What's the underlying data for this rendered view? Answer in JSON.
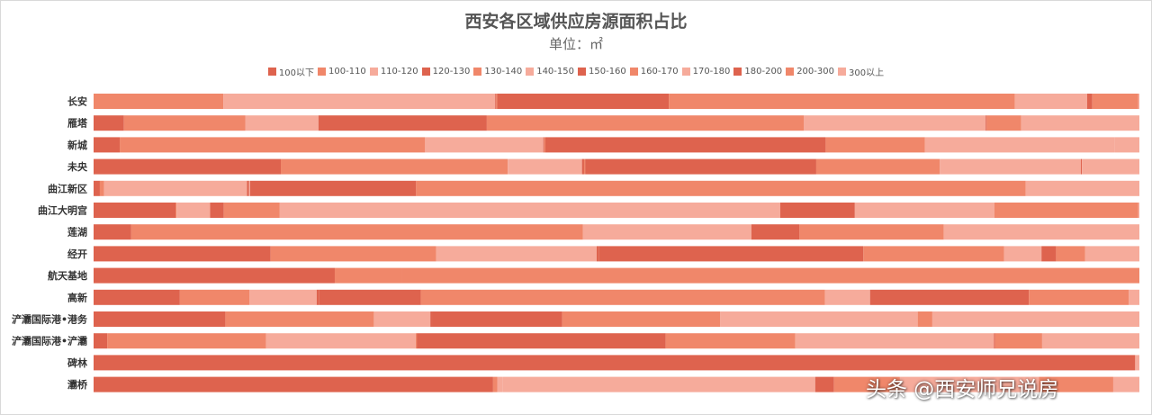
{
  "chart_data": {
    "type": "bar",
    "stacked": "100%",
    "orientation": "horizontal",
    "title": "西安各区域供应房源面积占比",
    "subtitle": "单位：㎡",
    "legend_position": "top",
    "categories": [
      "长安",
      "雁塔",
      "新城",
      "未央",
      "曲江新区",
      "曲江大明宫",
      "莲湖",
      "经开",
      "航天基地",
      "高新",
      "浐灞国际港•港务",
      "浐灞国际港•浐灞",
      "碑林",
      "灞桥"
    ],
    "series": [
      {
        "name": "100以下",
        "color": "#de634e",
        "values": [
          0,
          2.9,
          2.5,
          17.9,
          0.6,
          7.8,
          3.6,
          17.0,
          24.1,
          8.2,
          12.6,
          1.3,
          99.6,
          38.2
        ]
      },
      {
        "name": "100-110",
        "color": "#f0876a",
        "values": [
          12.4,
          11.6,
          29.2,
          21.7,
          0.4,
          0.1,
          0,
          15.9,
          6.7,
          6.6,
          14.2,
          15.2,
          0,
          0.4
        ]
      },
      {
        "name": "110-120",
        "color": "#f6ab9b",
        "values": [
          26.0,
          7.0,
          11.3,
          7.1,
          13.7,
          3.2,
          0,
          15.4,
          0,
          6.4,
          5.4,
          14.3,
          0,
          0.5
        ]
      },
      {
        "name": "120-130",
        "color": "#de634e",
        "values": [
          0.1,
          0,
          0.1,
          0.2,
          0.2,
          1.3,
          0,
          0.2,
          0,
          0.2,
          0.2,
          0,
          0,
          0
        ]
      },
      {
        "name": "130-140",
        "color": "#f0876a",
        "values": [
          0.1,
          0,
          0.1,
          0.1,
          0,
          5.3,
          43.2,
          0,
          0,
          0,
          0,
          0.1,
          0,
          0
        ]
      },
      {
        "name": "140-150",
        "color": "#f6ab9b",
        "values": [
          0,
          0,
          0,
          0,
          0.1,
          47.7,
          16.1,
          0,
          0,
          0,
          0,
          0,
          0,
          29.9
        ]
      },
      {
        "name": "150-160",
        "color": "#de634e",
        "values": [
          16.4,
          16.1,
          26.8,
          22.1,
          15.9,
          7.1,
          4.6,
          25.4,
          0,
          9.7,
          12.4,
          23.8,
          0,
          1.8
        ]
      },
      {
        "name": "160-170",
        "color": "#f0876a",
        "values": [
          33.1,
          30.3,
          9.5,
          11.8,
          58.4,
          0,
          13.8,
          13.5,
          73.7,
          38.4,
          15.1,
          12.4,
          0,
          6.3
        ]
      },
      {
        "name": "170-180",
        "color": "#f6ab9b",
        "values": [
          6.9,
          17.4,
          18.1,
          13.5,
          10.9,
          13.3,
          18.7,
          3.6,
          0,
          4.3,
          18.9,
          19.0,
          0,
          13.3
        ]
      },
      {
        "name": "180-200",
        "color": "#de634e",
        "values": [
          0.5,
          0.1,
          0,
          0.1,
          0,
          0,
          0,
          1.4,
          0,
          15.1,
          0,
          0.1,
          0,
          0
        ]
      },
      {
        "name": "200-300",
        "color": "#f0876a",
        "values": [
          4.4,
          3.3,
          0,
          0,
          0,
          13.7,
          0,
          2.8,
          0,
          9.5,
          1.4,
          4.5,
          0,
          7.1
        ]
      },
      {
        "name": "300以上",
        "color": "#f6ab9b",
        "values": [
          0.1,
          11.3,
          2.4,
          5.5,
          0,
          0.1,
          0,
          5.2,
          0,
          1.0,
          19.8,
          9.3,
          0.4,
          2.5
        ]
      }
    ],
    "xlim": [
      0,
      100
    ],
    "grid": false
  },
  "watermark": "头条 @西安师兄说房"
}
